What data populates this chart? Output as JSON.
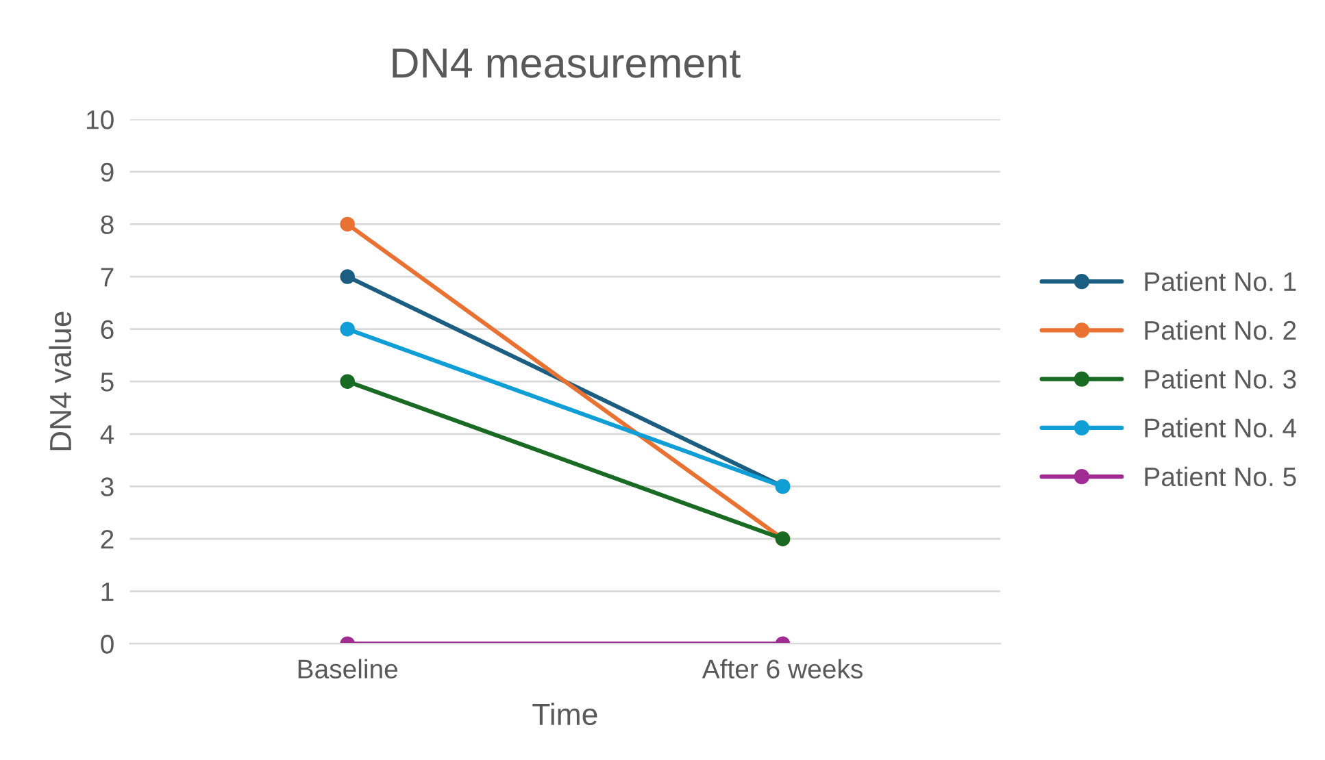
{
  "chart_data": {
    "type": "line",
    "title": "DN4 measurement",
    "xlabel": "Time",
    "ylabel": "DN4 value",
    "categories": [
      "Baseline",
      "After 6 weeks"
    ],
    "series": [
      {
        "name": "Patient No. 1",
        "color": "#1b5e82",
        "values": [
          7,
          3
        ]
      },
      {
        "name": "Patient No. 2",
        "color": "#e97132",
        "values": [
          8,
          2
        ]
      },
      {
        "name": "Patient No. 3",
        "color": "#196b24",
        "values": [
          5,
          2
        ]
      },
      {
        "name": "Patient No. 4",
        "color": "#0f9ed5",
        "values": [
          6,
          3
        ]
      },
      {
        "name": "Patient No. 5",
        "color": "#a02b93",
        "values": [
          0,
          0
        ]
      }
    ],
    "ylim": [
      0,
      10
    ],
    "yticks": [
      0,
      1,
      2,
      3,
      4,
      5,
      6,
      7,
      8,
      9,
      10
    ],
    "grid": "y",
    "legend": "right",
    "marker": "circle",
    "line_style": "solid"
  }
}
